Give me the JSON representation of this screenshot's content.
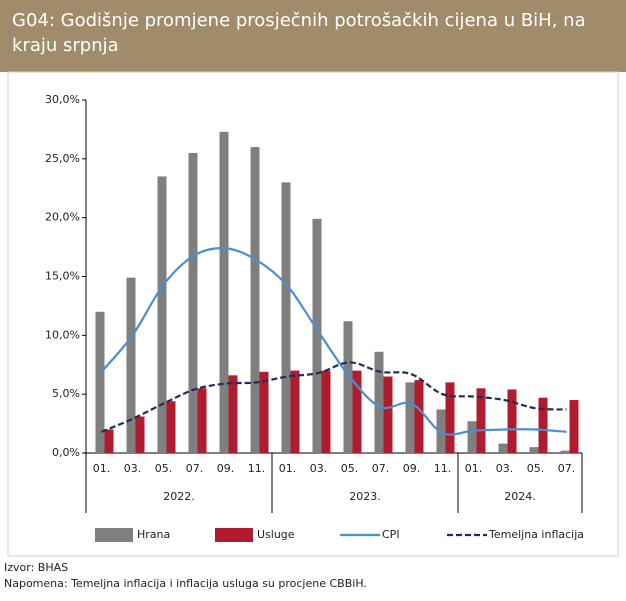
{
  "chart_data": {
    "type": "bar-line",
    "title": "G04: Godišnje promjene prosječnih potrošačkih cijena u BiH, na kraju srpnja",
    "categories": [
      "01.",
      "03.",
      "05.",
      "07.",
      "09.",
      "11.",
      "01.",
      "03.",
      "05.",
      "07.",
      "09.",
      "11.",
      "01.",
      "03.",
      "05.",
      "07."
    ],
    "groups": [
      {
        "label": "2022.",
        "count": 6
      },
      {
        "label": "2023.",
        "count": 6
      },
      {
        "label": "2024.",
        "count": 4
      }
    ],
    "series": [
      {
        "name": "Hrana",
        "kind": "bar",
        "color": "#7f7f7f",
        "values": [
          12.0,
          14.9,
          23.5,
          25.5,
          27.3,
          26.0,
          23.0,
          19.9,
          11.2,
          8.6,
          6.0,
          3.7,
          2.7,
          0.8,
          0.5,
          0.2
        ]
      },
      {
        "name": "Usluge",
        "kind": "bar",
        "color": "#b01c2e",
        "values": [
          2.0,
          3.1,
          4.4,
          5.5,
          6.6,
          6.9,
          7.0,
          7.0,
          7.0,
          6.5,
          6.2,
          6.0,
          5.5,
          5.4,
          4.7,
          4.5
        ]
      },
      {
        "name": "CPI",
        "kind": "line",
        "color": "#4a8fd0",
        "dashed": false,
        "values": [
          6.9,
          10.0,
          14.3,
          16.8,
          17.4,
          16.4,
          14.2,
          10.3,
          6.5,
          3.9,
          4.2,
          1.7,
          1.9,
          2.0,
          2.0,
          1.8
        ]
      },
      {
        "name": "Temeljna inflacija",
        "kind": "line",
        "color": "#1f2d5a",
        "dashed": true,
        "values": [
          1.8,
          2.9,
          4.2,
          5.4,
          5.9,
          6.0,
          6.5,
          6.8,
          7.7,
          6.9,
          6.7,
          5.0,
          4.8,
          4.5,
          3.8,
          3.7
        ]
      }
    ],
    "ylim": [
      0,
      30
    ],
    "yticks": [
      {
        "value": 0,
        "label": "0,0%"
      },
      {
        "value": 5,
        "label": "5,0%"
      },
      {
        "value": 10,
        "label": "10,0%"
      },
      {
        "value": 15,
        "label": "15,0%"
      },
      {
        "value": 20,
        "label": "20,0%"
      },
      {
        "value": 25,
        "label": "25,0%"
      },
      {
        "value": 30,
        "label": "30,0%"
      }
    ],
    "source": "Izvor: BHAS",
    "note": "Napomena: Temeljna inflacija i inflacija usluga su procjene CBBiH."
  }
}
